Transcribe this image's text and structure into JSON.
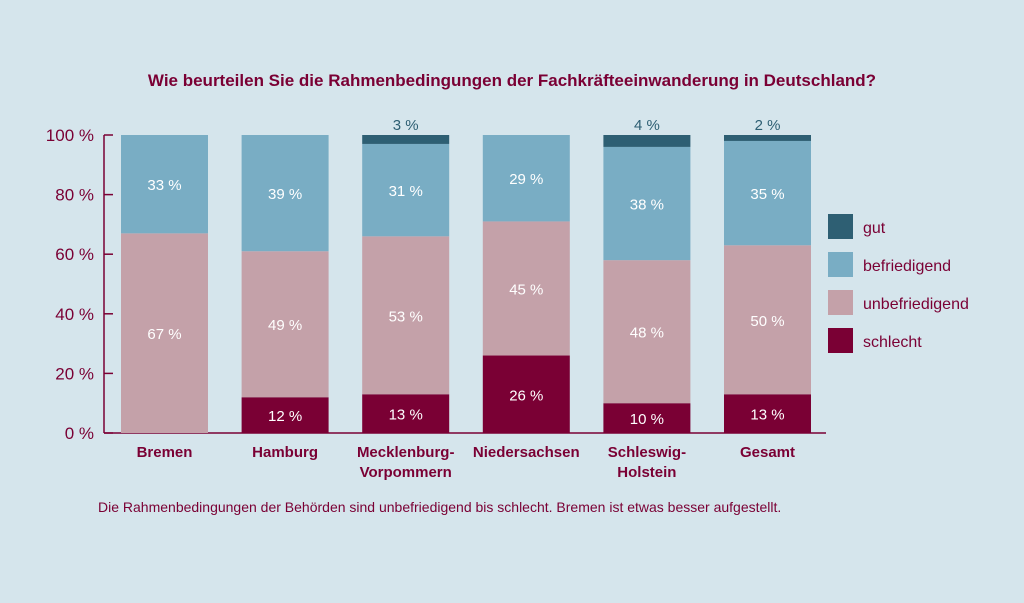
{
  "chart_data": {
    "type": "bar",
    "stacked": true,
    "title": "Wie beurteilen Sie die Rahmenbedingungen der Fachkräfteeinwanderung in Deutschland?",
    "caption": "Die Rahmenbedingungen der Behörden sind unbefriedigend bis schlecht. Bremen ist etwas besser aufgestellt.",
    "xlabel": "",
    "ylabel": "",
    "ylim": [
      0,
      100
    ],
    "yticks": [
      0,
      20,
      40,
      60,
      80,
      100
    ],
    "ytick_labels": [
      "0 %",
      "20 %",
      "40 %",
      "60 %",
      "80 %",
      "100 %"
    ],
    "categories": [
      [
        "Bremen"
      ],
      [
        "Hamburg"
      ],
      [
        "Mecklenburg-",
        "Vorpommern"
      ],
      [
        "Niedersachsen"
      ],
      [
        "Schleswig-",
        "Holstein"
      ],
      [
        "Gesamt"
      ]
    ],
    "series": [
      {
        "name": "schlecht",
        "color": "#7a0034",
        "values": [
          0,
          12,
          13,
          26,
          10,
          13
        ],
        "labels": [
          "",
          "12 %",
          "13 %",
          "26 %",
          "10 %",
          "13 %"
        ]
      },
      {
        "name": "unbefriedigend",
        "color": "#c4a1a9",
        "values": [
          67,
          49,
          53,
          45,
          48,
          50
        ],
        "labels": [
          "67 %",
          "49 %",
          "53 %",
          "45 %",
          "48 %",
          "50 %"
        ]
      },
      {
        "name": "befriedigend",
        "color": "#79adc4",
        "values": [
          33,
          39,
          31,
          29,
          38,
          35
        ],
        "labels": [
          "33 %",
          "39 %",
          "31 %",
          "29 %",
          "38 %",
          "35 %"
        ]
      },
      {
        "name": "gut",
        "color": "#2e5f73",
        "values": [
          0,
          0,
          3,
          0,
          4,
          2
        ],
        "labels": [
          "",
          "",
          "3 %",
          "",
          "4 %",
          "2 %"
        ]
      }
    ],
    "legend": {
      "placement": "right",
      "order": [
        "gut",
        "befriedigend",
        "unbefriedigend",
        "schlecht"
      ]
    },
    "grid": false
  }
}
